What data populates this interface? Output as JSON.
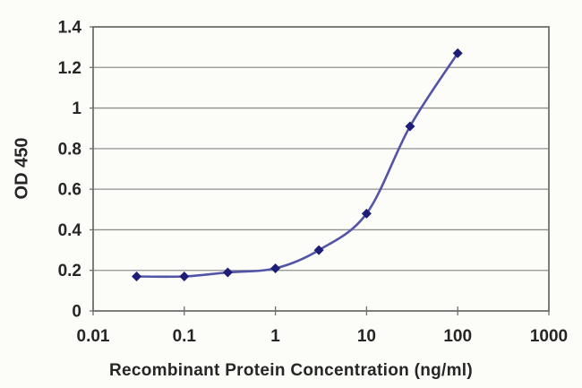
{
  "chart_data": {
    "type": "line",
    "title": "",
    "xlabel": "Recombinant Protein Concentration (ng/ml)",
    "ylabel": "OD 450",
    "x_scale": "log",
    "xlim": [
      0.01,
      1000
    ],
    "ylim": [
      0,
      1.4
    ],
    "x_tick_values": [
      0.01,
      0.1,
      1,
      10,
      100,
      1000
    ],
    "x_tick_labels": [
      "0.01",
      "0.1",
      "1",
      "10",
      "100",
      "1000"
    ],
    "y_tick_values": [
      0,
      0.2,
      0.4,
      0.6,
      0.8,
      1,
      1.2,
      1.4
    ],
    "y_tick_labels": [
      "0",
      "0.2",
      "0.4",
      "0.6",
      "0.8",
      "1",
      "1.2",
      "1.4"
    ],
    "grid": true,
    "legend": "none",
    "marker": "diamond",
    "line_style": "smooth",
    "series": [
      {
        "name": "OD 450",
        "x": [
          0.03,
          0.1,
          0.3,
          1,
          3,
          10,
          30,
          100
        ],
        "y": [
          0.17,
          0.17,
          0.19,
          0.21,
          0.3,
          0.48,
          0.91,
          1.27
        ]
      }
    ],
    "colors": {
      "line": "#5254a8",
      "marker": "#1e1e78",
      "grid": "#8f8f8f",
      "frame": "#6f6f6f",
      "text": "#262626",
      "background": "#fcfdf8"
    }
  }
}
